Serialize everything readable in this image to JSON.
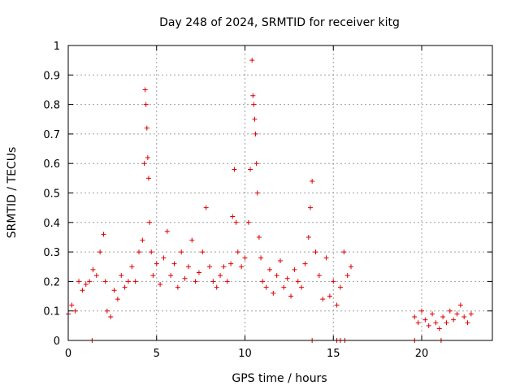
{
  "chart_data": {
    "type": "scatter",
    "title": "Day 248 of 2024, SRMTID for receiver kitg",
    "xlabel": "GPS time / hours",
    "ylabel": "SRMTID / TECUs",
    "xlim": [
      0,
      24
    ],
    "ylim": [
      0,
      1
    ],
    "xticks": [
      0,
      5,
      10,
      15,
      20
    ],
    "xtick_labels": [
      "0",
      "5",
      "10",
      "15",
      "20"
    ],
    "yticks": [
      0,
      0.1,
      0.2,
      0.3,
      0.4,
      0.5,
      0.6,
      0.7,
      0.8,
      0.9,
      1
    ],
    "ytick_labels": [
      "0",
      "0.1",
      "0.2",
      "0.3",
      "0.4",
      "0.5",
      "0.6",
      "0.7",
      "0.8",
      "0.9",
      "1"
    ],
    "grid": true,
    "marker": "+",
    "series": [
      {
        "name": "SRMTID",
        "color": "#dd0000",
        "x": [
          0.0,
          0.2,
          0.4,
          0.6,
          0.8,
          1.0,
          1.2,
          1.4,
          1.6,
          1.8,
          2.0,
          2.1,
          2.2,
          2.4,
          2.6,
          2.8,
          3.0,
          3.2,
          3.4,
          3.6,
          3.8,
          4.0,
          4.2,
          4.3,
          4.35,
          4.4,
          4.45,
          4.5,
          4.55,
          4.6,
          4.7,
          4.8,
          5.0,
          5.2,
          5.4,
          5.6,
          5.8,
          6.0,
          6.2,
          6.4,
          6.6,
          6.8,
          7.0,
          7.2,
          7.4,
          7.6,
          7.8,
          8.0,
          8.2,
          8.4,
          8.6,
          8.8,
          9.0,
          9.2,
          9.3,
          9.4,
          9.5,
          9.6,
          9.8,
          10.0,
          10.2,
          10.3,
          10.4,
          10.45,
          10.5,
          10.55,
          10.6,
          10.65,
          10.7,
          10.8,
          10.9,
          11.0,
          11.2,
          11.4,
          11.6,
          11.8,
          12.0,
          12.2,
          12.4,
          12.6,
          12.8,
          13.0,
          13.2,
          13.4,
          13.6,
          13.7,
          13.8,
          14.0,
          14.2,
          14.4,
          14.6,
          14.8,
          15.0,
          15.2,
          15.4,
          15.6,
          15.8,
          16.0,
          1.35,
          13.8,
          15.2,
          15.4,
          15.65,
          19.6,
          21.1,
          19.6,
          19.8,
          20.0,
          20.2,
          20.4,
          20.6,
          20.8,
          21.0,
          21.2,
          21.4,
          21.6,
          21.8,
          22.0,
          22.2,
          22.4,
          22.6,
          22.8
        ],
        "y": [
          0.09,
          0.12,
          0.1,
          0.2,
          0.17,
          0.19,
          0.2,
          0.24,
          0.22,
          0.3,
          0.36,
          0.2,
          0.1,
          0.08,
          0.17,
          0.14,
          0.22,
          0.18,
          0.2,
          0.25,
          0.2,
          0.3,
          0.34,
          0.6,
          0.85,
          0.8,
          0.72,
          0.62,
          0.55,
          0.4,
          0.3,
          0.22,
          0.26,
          0.19,
          0.28,
          0.37,
          0.22,
          0.26,
          0.18,
          0.3,
          0.21,
          0.25,
          0.34,
          0.2,
          0.23,
          0.3,
          0.45,
          0.25,
          0.2,
          0.18,
          0.22,
          0.25,
          0.2,
          0.26,
          0.42,
          0.58,
          0.4,
          0.3,
          0.25,
          0.28,
          0.4,
          0.58,
          0.95,
          0.83,
          0.8,
          0.75,
          0.7,
          0.6,
          0.5,
          0.35,
          0.28,
          0.2,
          0.18,
          0.24,
          0.16,
          0.22,
          0.27,
          0.18,
          0.21,
          0.15,
          0.24,
          0.2,
          0.18,
          0.26,
          0.35,
          0.45,
          0.54,
          0.3,
          0.22,
          0.14,
          0.28,
          0.15,
          0.2,
          0.12,
          0.18,
          0.3,
          0.22,
          0.25,
          0.0,
          0.0,
          0.0,
          0.0,
          0.0,
          0.0,
          0.0,
          0.08,
          0.06,
          0.1,
          0.07,
          0.05,
          0.09,
          0.06,
          0.04,
          0.08,
          0.06,
          0.1,
          0.07,
          0.09,
          0.12,
          0.08,
          0.06,
          0.09
        ]
      }
    ]
  }
}
